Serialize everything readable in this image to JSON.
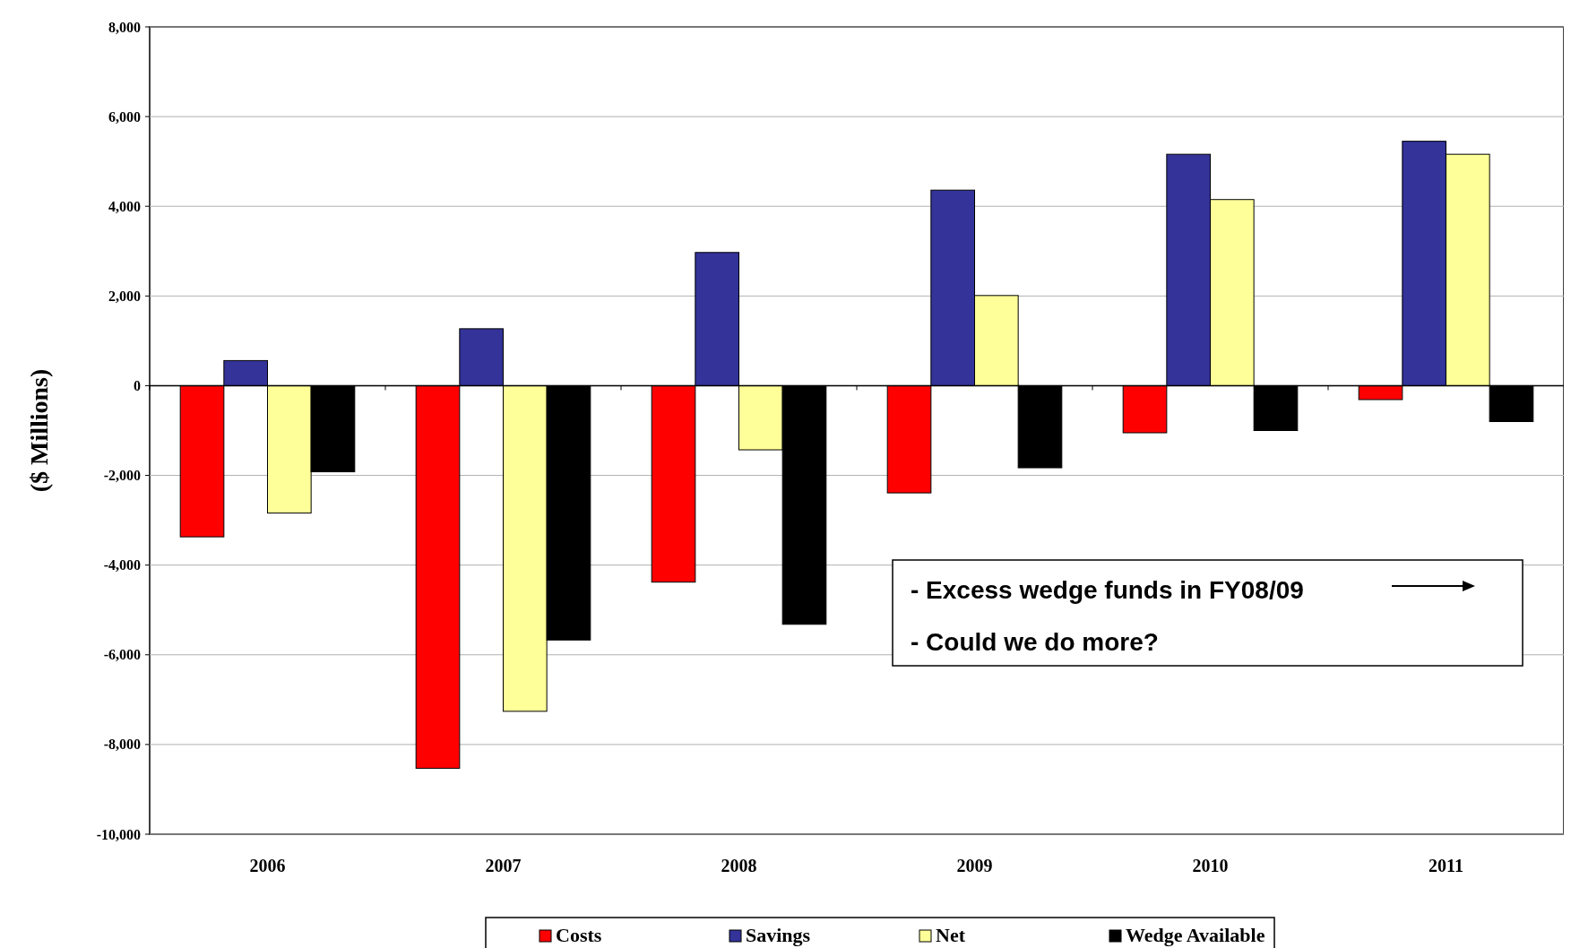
{
  "chart_data": {
    "type": "bar",
    "ylabel": "($ Millions)",
    "categories": [
      "2006",
      "2007",
      "2008",
      "2009",
      "2010",
      "2011"
    ],
    "series": [
      {
        "name": "Costs",
        "color": "#ff0000",
        "values": [
          -3370,
          -8530,
          -4380,
          -2390,
          -1050,
          -310
        ]
      },
      {
        "name": "Savings",
        "color": "#333399",
        "values": [
          560,
          1270,
          2970,
          4360,
          5160,
          5450
        ]
      },
      {
        "name": "Net",
        "color": "#ffff99",
        "values": [
          -2840,
          -7260,
          -1430,
          2010,
          4150,
          5160
        ]
      },
      {
        "name": "Wedge Available",
        "color": "#000000",
        "values": [
          -1920,
          -5670,
          -5320,
          -1830,
          -1000,
          -800
        ]
      }
    ],
    "ylim": [
      -10000,
      8000
    ],
    "yticks": [
      {
        "value": -10000,
        "label": "-10,000"
      },
      {
        "value": -8000,
        "label": "-8,000"
      },
      {
        "value": -6000,
        "label": "-6,000"
      },
      {
        "value": -4000,
        "label": "-4,000"
      },
      {
        "value": -2000,
        "label": "-2,000"
      },
      0,
      {
        "value": 2000,
        "label": "2,000"
      },
      {
        "value": 4000,
        "label": "4,000"
      },
      {
        "value": 6000,
        "label": "6,000"
      },
      {
        "value": 8000,
        "label": "8,000"
      }
    ],
    "grid": "y",
    "legend": "bottom",
    "annotations": [
      "- Excess wedge funds in FY08/09",
      "- Could we do more?"
    ]
  }
}
